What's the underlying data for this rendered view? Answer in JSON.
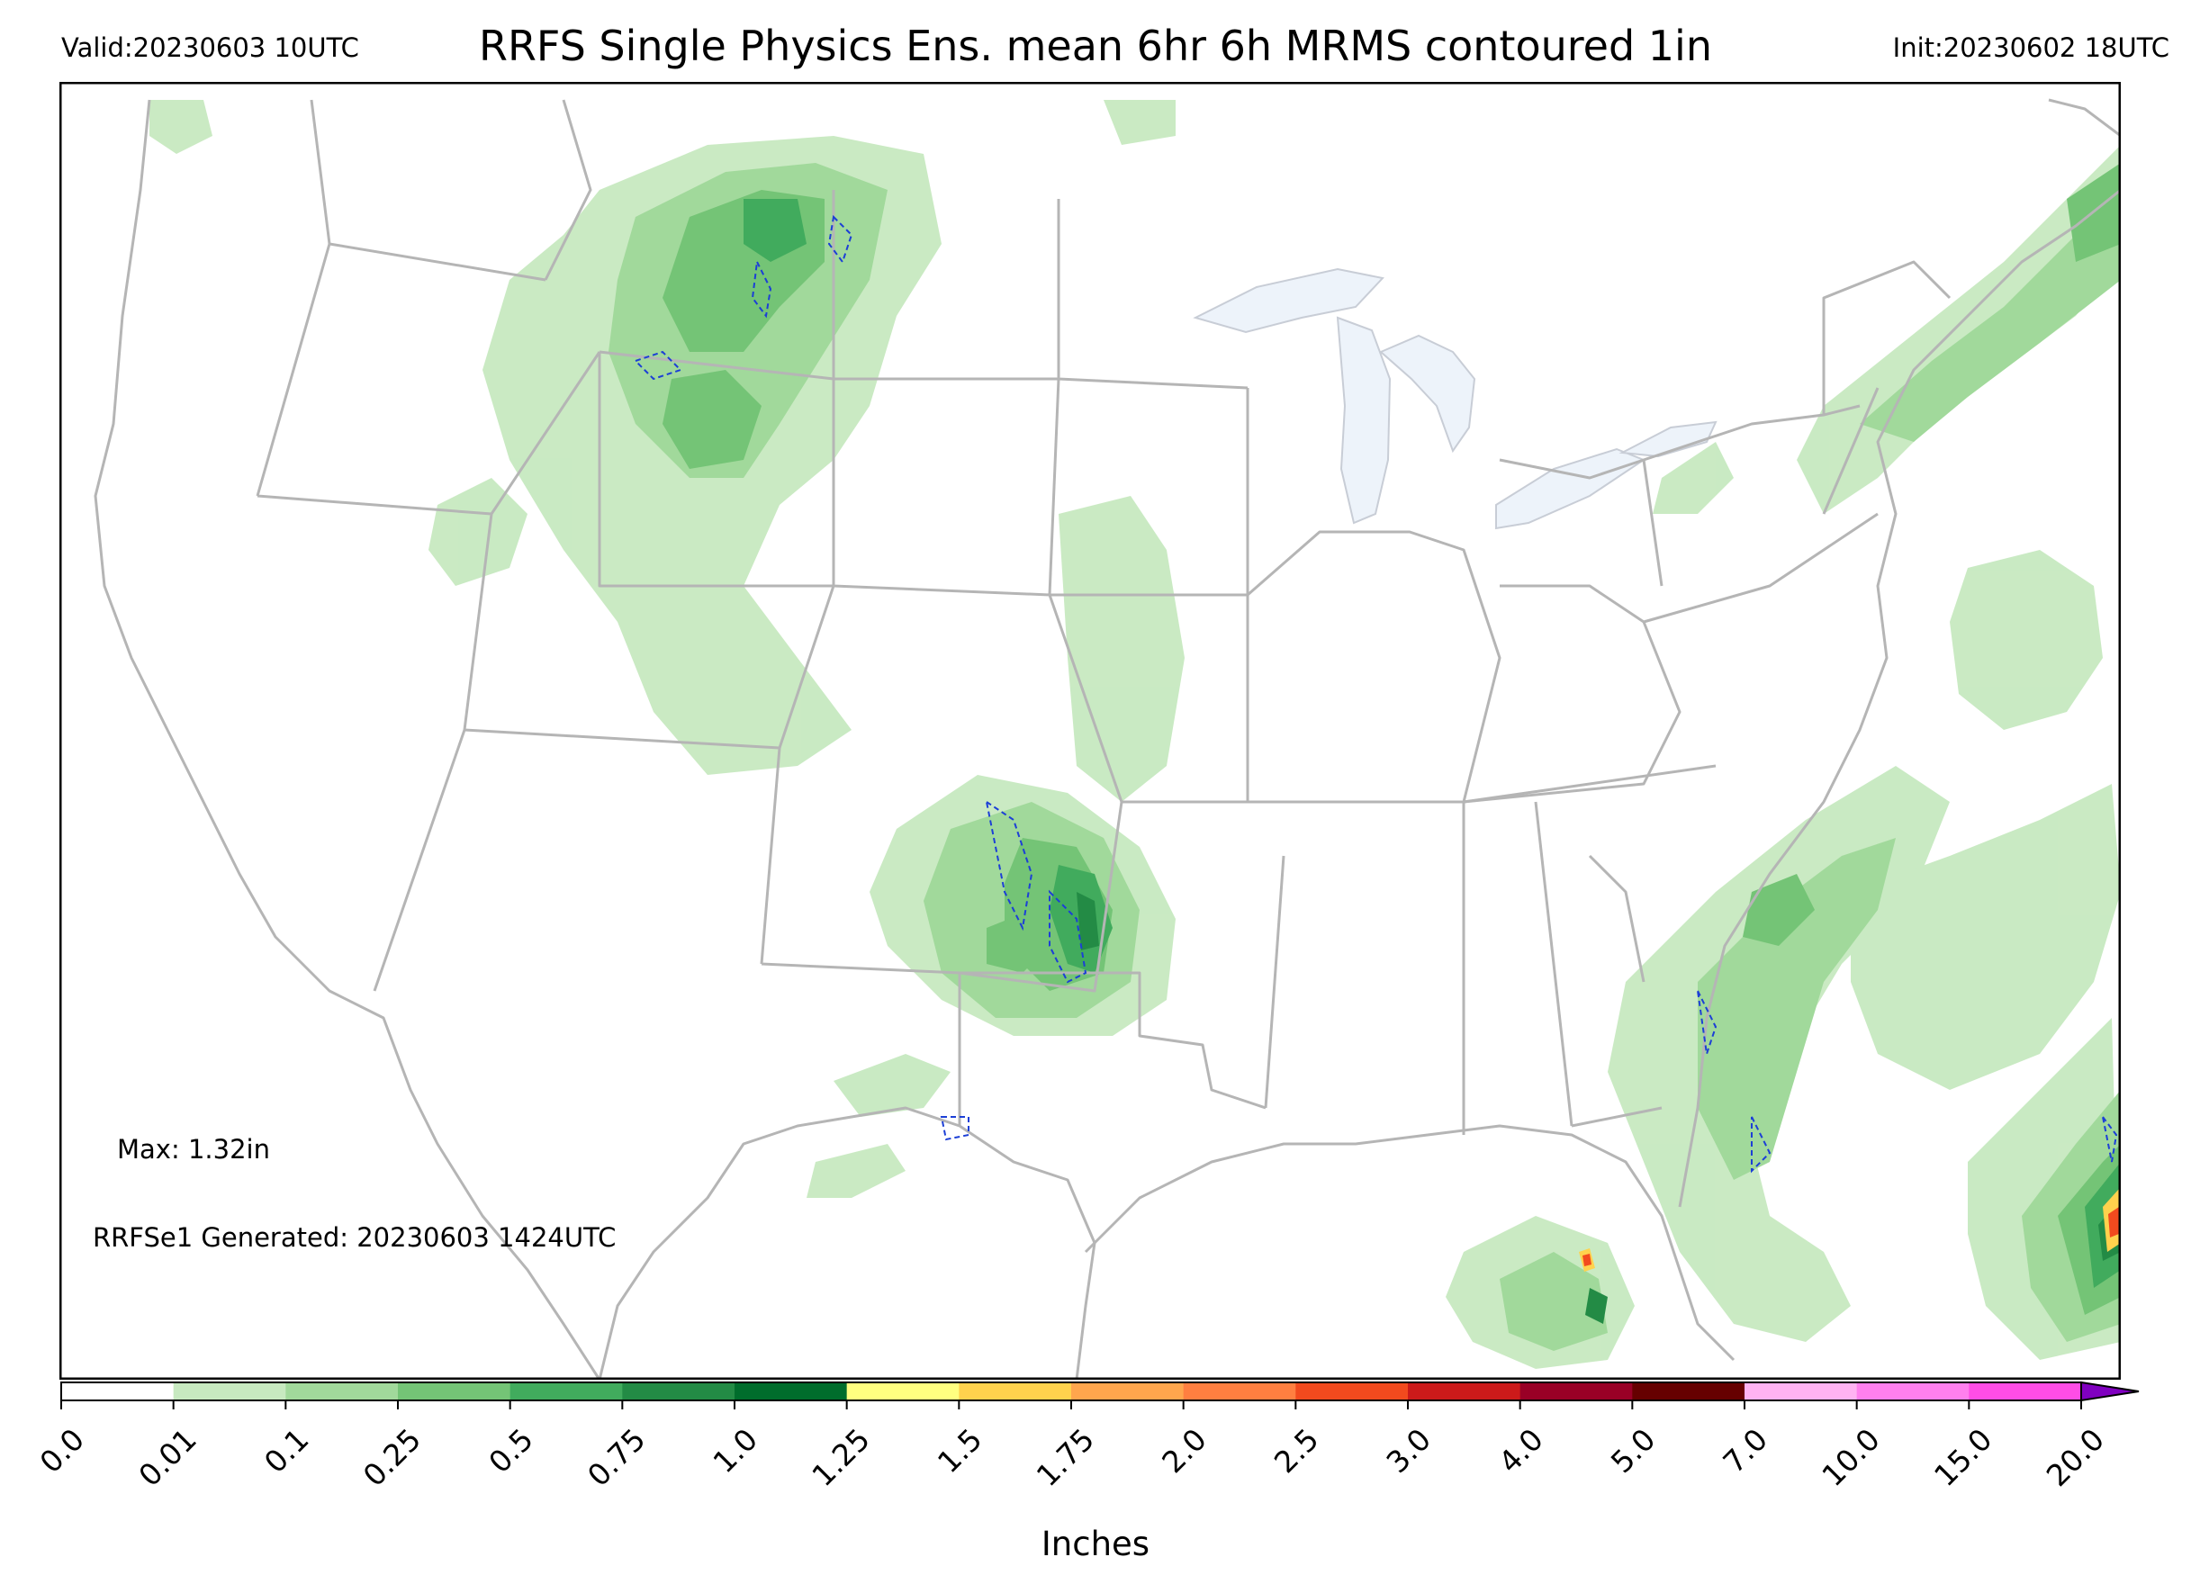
{
  "header": {
    "valid": "Valid:20230603 10UTC",
    "title": "RRFS Single Physics Ens. mean 6hr 6h MRMS contoured 1in",
    "init": "Init:20230602 18UTC"
  },
  "annotations": {
    "max": "Max: 1.32in",
    "generated": "RRFSe1 Generated: 20230603 1424UTC"
  },
  "colorbar": {
    "label": "Inches",
    "ticks": [
      "0.0",
      "0.01",
      "0.1",
      "0.25",
      "0.5",
      "0.75",
      "1.0",
      "1.25",
      "1.5",
      "1.75",
      "2.0",
      "2.5",
      "3.0",
      "4.0",
      "5.0",
      "7.0",
      "10.0",
      "15.0",
      "20.0"
    ],
    "colors": [
      "#ffffff",
      "#c7e9c0",
      "#a1d99b",
      "#74c476",
      "#41ab5d",
      "#238b45",
      "#006d2c",
      "#ffff80",
      "#ffd24d",
      "#ffa64d",
      "#ff7f40",
      "#f24a1e",
      "#cc1a1a",
      "#990026",
      "#660000",
      "#ffb3f2",
      "#ff80ee",
      "#ff4de6",
      "#e61ae6",
      "#b30fd9",
      "#8000c0"
    ]
  },
  "map": {
    "projection": "Lambert conformal CONUS",
    "region": "Contiguous United States with Gulf of Mexico and western Atlantic",
    "layers": [
      "state-borders",
      "coastlines",
      "great-lakes",
      "precip-shading",
      "mrms-1in-contour"
    ],
    "colors": {
      "border": "#b5b5b5",
      "lake": "#edf3fa",
      "contour": "#1c3fd6"
    }
  }
}
